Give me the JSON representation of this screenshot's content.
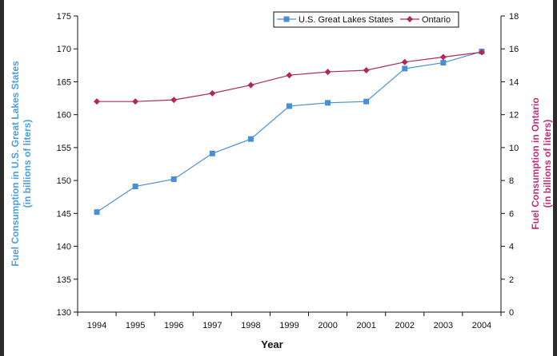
{
  "chart_data": {
    "type": "line",
    "title": "",
    "xlabel": "Year",
    "ylabel_left": "Fuel Consumption in U.S. Great Lakes States",
    "ylabel_left_sub": "(in billions of liters)",
    "ylabel_right": "Fuel Consumption in Ontario",
    "ylabel_right_sub": "(in billions of liters)",
    "categories": [
      "1994",
      "1995",
      "1996",
      "1997",
      "1998",
      "1999",
      "2000",
      "2001",
      "2002",
      "2003",
      "2004"
    ],
    "ylim_left": [
      130,
      175
    ],
    "yticks_left": [
      "130",
      "135",
      "140",
      "145",
      "150",
      "155",
      "160",
      "165",
      "170",
      "175"
    ],
    "ylim_right": [
      0,
      18
    ],
    "yticks_right": [
      "0",
      "2",
      "4",
      "6",
      "8",
      "10",
      "12",
      "14",
      "16",
      "18"
    ],
    "grid": false,
    "legend_position": "top-right",
    "series": [
      {
        "name": "U.S. Great Lakes States",
        "axis": "left",
        "marker": "square",
        "color": "#4a8fd4",
        "values": [
          145.2,
          149.1,
          150.2,
          154.1,
          156.3,
          161.3,
          161.8,
          162.0,
          167.0,
          167.9,
          169.6
        ]
      },
      {
        "name": "Ontario",
        "axis": "right",
        "marker": "diamond",
        "color": "#b0285a",
        "values": [
          12.8,
          12.8,
          12.9,
          13.3,
          13.8,
          14.4,
          14.6,
          14.7,
          15.2,
          15.5,
          15.8
        ]
      }
    ]
  },
  "colors": {
    "left_axis_title": "#4a9fe0",
    "right_axis_title": "#c2307a",
    "axis": "#111111"
  }
}
